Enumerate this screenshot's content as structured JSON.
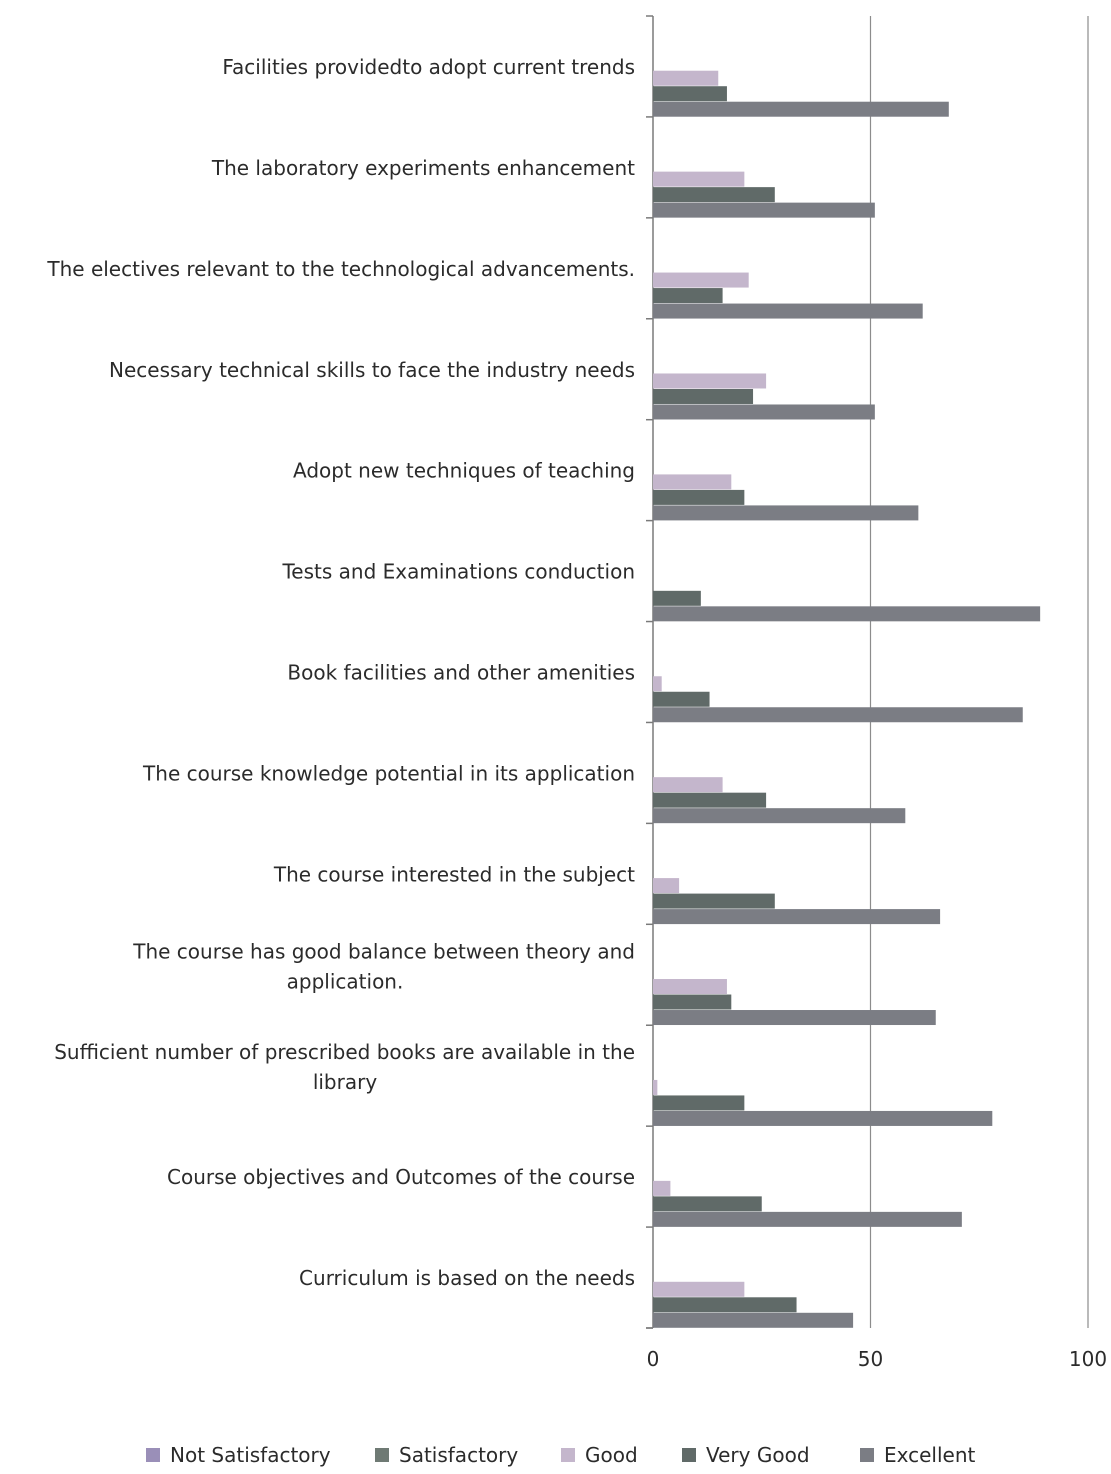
{
  "chart_data": {
    "type": "bar",
    "orientation": "horizontal",
    "categories": [
      "Facilities  providedto adopt current trends",
      "The laboratory experiments enhancement",
      "The electives  relevant to the technological advancements.",
      "Necessary technical skills to face the industry needs",
      "Adopt new techniques of teaching",
      "Tests and Examinations conduction",
      "Book facilities and other amenities",
      "The course  knowledge potential in its application",
      "The course interested in the subject",
      "The course has good balance between theory and application.",
      "Sufficient number of prescribed books are available in the library",
      "Course objectives and Outcomes of the course",
      "Curriculum is based on the needs"
    ],
    "series": [
      {
        "name": "Not Satisfactory",
        "color": "#9a8fb8",
        "values": [
          0,
          0,
          0,
          0,
          0,
          0,
          0,
          0,
          0,
          0,
          0,
          0,
          0
        ]
      },
      {
        "name": "Satisfactory",
        "color": "#6f7a74",
        "values": [
          0,
          0,
          0,
          0,
          0,
          0,
          0,
          0,
          0,
          0,
          0,
          0,
          0
        ]
      },
      {
        "name": "Good",
        "color": "#c4b6cc",
        "values": [
          15,
          21,
          22,
          26,
          18,
          0,
          2,
          16,
          6,
          17,
          1,
          4,
          21
        ]
      },
      {
        "name": "Very Good",
        "color": "#606a68",
        "values": [
          17,
          28,
          16,
          23,
          21,
          11,
          13,
          26,
          28,
          18,
          21,
          25,
          33
        ]
      },
      {
        "name": "Excellent",
        "color": "#7b7d84",
        "values": [
          68,
          51,
          62,
          51,
          61,
          89,
          85,
          58,
          66,
          65,
          78,
          71,
          46
        ]
      }
    ],
    "xlim": [
      0,
      100
    ],
    "xticks": [
      0,
      50,
      100
    ],
    "grid": true,
    "legend_position": "bottom",
    "title": "",
    "xlabel": "",
    "ylabel": ""
  }
}
